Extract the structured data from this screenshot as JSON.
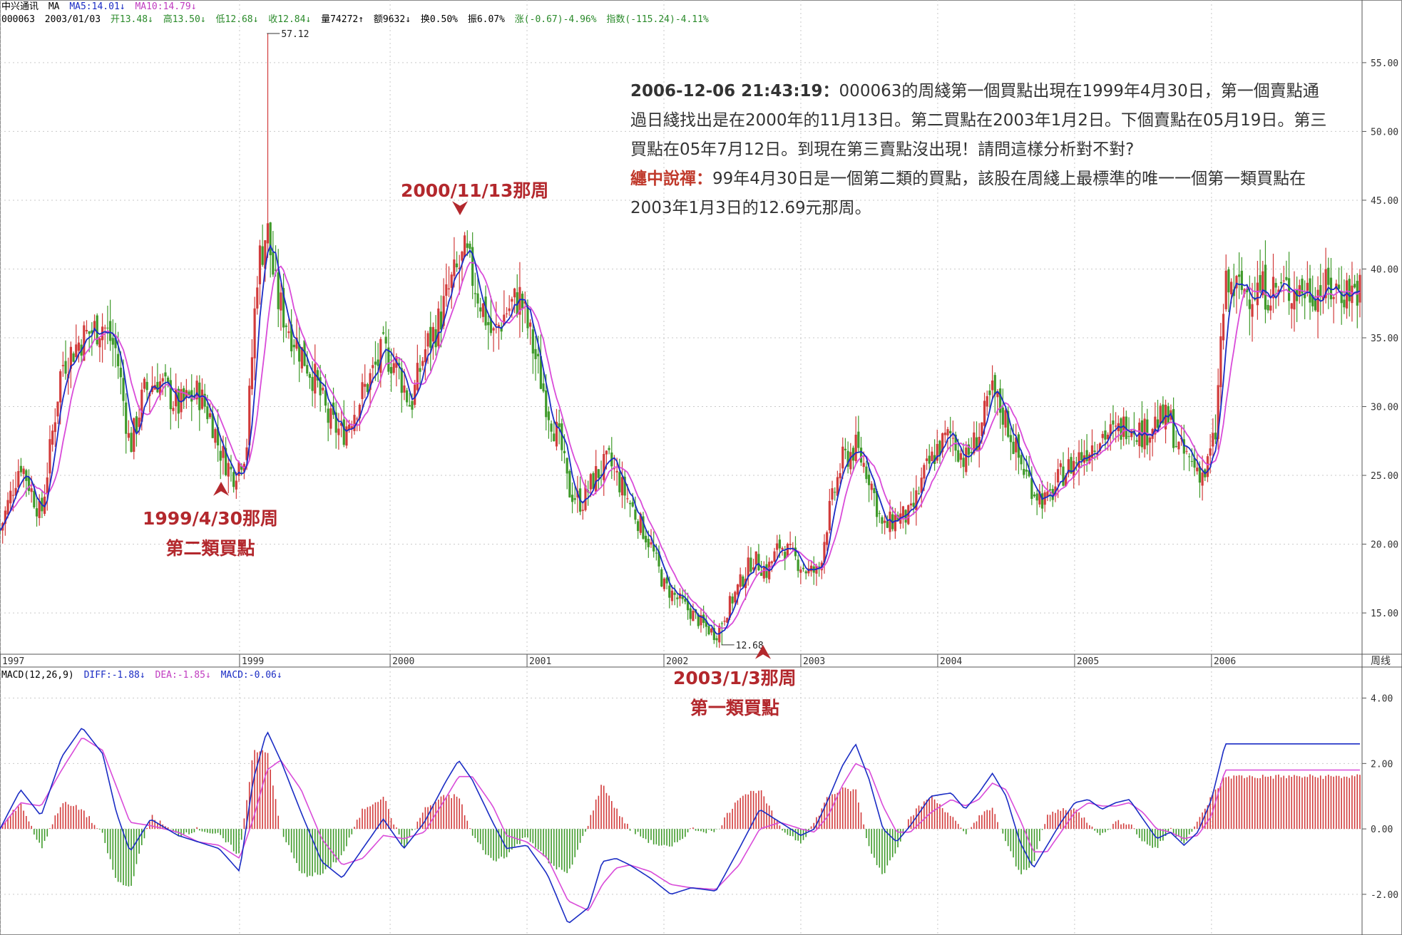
{
  "header": {
    "line1": {
      "stock_name": "中兴通讯",
      "ma_label": "MA",
      "ma5": "MA5:14.01↓",
      "ma10": "MA10:14.79↓"
    },
    "line2": {
      "code": "000063",
      "date": "2003/01/03",
      "open": "开13.48↓",
      "high": "高13.50↓",
      "low": "低12.68↓",
      "close": "收12.84↓",
      "volume": "量74272↑",
      "amount": "额9632↓",
      "turnover": "换0.50%",
      "amplitude": "振6.07%",
      "change": "涨(-0.67)-4.96%",
      "index": "指数(-115.24)-4.11%"
    },
    "macd": {
      "title": "MACD(12,26,9)",
      "diff": "DIFF:-1.88↓",
      "dea": "DEA:-1.85↓",
      "macd": "MACD:-0.06↓"
    }
  },
  "comment": {
    "q_label": "2006-12-06 21:43:19：",
    "q_text": "000063的周綫第一個買點出現在1999年4月30日，第一個賣點通過日綫找出是在2000年的11月13日。第二買點在2003年1月2日。下個賣點在05月19日。第三買點在05年7月12日。到現在第三賣點沒出現！請問這樣分析對不對?",
    "a_label": "纏中說禪：",
    "a_text": "99年4月30日是一個第二類的買點，該股在周綫上最標準的唯一一個第一類買點在2003年1月3日的12.69元那周。"
  },
  "annotations": {
    "a1999_line1": "1999/4/30那周",
    "a1999_line2": "第二類買點",
    "a2000": "2000/11/13那周",
    "a2003_line1": "2003/1/3那周",
    "a2003_line2": "第一類買點"
  },
  "colors": {
    "up": "#d23b3b",
    "down": "#3f9a2a",
    "ma5": "#1a2cc4",
    "ma10": "#d94bd9",
    "grid": "#c9c9c9",
    "annotation": "#b3282d",
    "hdr_blue": "#1a2cc4",
    "hdr_magenta": "#c03cc0",
    "hdr_green": "#2a8a2a"
  },
  "chart_data": [
    {
      "type": "candlestick-weekly",
      "title": "中兴通讯 000063 周线",
      "x_tick_labels": [
        "1997",
        "1999",
        "2000",
        "2001",
        "2002",
        "2003",
        "2004",
        "2005",
        "2006"
      ],
      "x_tick_years": [
        1997.0,
        1998.75,
        1999.85,
        2000.85,
        2001.85,
        2002.85,
        2003.85,
        2004.85,
        2005.85
      ],
      "x_range": [
        1997.0,
        2006.95
      ],
      "period_label": "周线",
      "y_ticks": [
        15,
        20,
        25,
        30,
        35,
        40,
        45,
        50,
        55
      ],
      "y_tick_labels": [
        "15.00",
        "20.00",
        "25.00",
        "30.00",
        "35.00",
        "40.00",
        "45.00",
        "50.00",
        "55.00"
      ],
      "ylim": [
        12,
        58
      ],
      "price_path": [
        [
          1997.0,
          21
        ],
        [
          1997.15,
          26
        ],
        [
          1997.3,
          22
        ],
        [
          1997.45,
          33
        ],
        [
          1997.6,
          35
        ],
        [
          1997.75,
          36
        ],
        [
          1997.85,
          34
        ],
        [
          1997.95,
          27
        ],
        [
          1998.05,
          31
        ],
        [
          1998.15,
          32
        ],
        [
          1998.3,
          30
        ],
        [
          1998.45,
          31
        ],
        [
          1998.55,
          29
        ],
        [
          1998.6,
          27
        ],
        [
          1998.7,
          25
        ],
        [
          1998.8,
          27
        ],
        [
          1998.88,
          40
        ],
        [
          1998.95,
          43
        ],
        [
          1999.02,
          38
        ],
        [
          1999.1,
          36
        ],
        [
          1999.2,
          34
        ],
        [
          1999.3,
          32
        ],
        [
          1999.4,
          29
        ],
        [
          1999.5,
          28
        ],
        [
          1999.6,
          30
        ],
        [
          1999.7,
          32
        ],
        [
          1999.8,
          34
        ],
        [
          1999.9,
          33
        ],
        [
          2000.0,
          30
        ],
        [
          2000.1,
          34
        ],
        [
          2000.2,
          36
        ],
        [
          2000.3,
          39
        ],
        [
          2000.4,
          41
        ],
        [
          2000.5,
          38
        ],
        [
          2000.6,
          35
        ],
        [
          2000.7,
          37
        ],
        [
          2000.8,
          38
        ],
        [
          2000.9,
          34
        ],
        [
          2001.0,
          30
        ],
        [
          2001.1,
          27
        ],
        [
          2001.15,
          24
        ],
        [
          2001.25,
          23
        ],
        [
          2001.35,
          25
        ],
        [
          2001.45,
          26
        ],
        [
          2001.55,
          24
        ],
        [
          2001.65,
          22
        ],
        [
          2001.75,
          20
        ],
        [
          2001.85,
          17
        ],
        [
          2001.95,
          16
        ],
        [
          2002.05,
          15
        ],
        [
          2002.15,
          14
        ],
        [
          2002.23,
          13.4
        ],
        [
          2002.3,
          15
        ],
        [
          2002.4,
          17
        ],
        [
          2002.5,
          19
        ],
        [
          2002.6,
          18
        ],
        [
          2002.7,
          20
        ],
        [
          2002.8,
          19
        ],
        [
          2002.9,
          18
        ],
        [
          2002.98,
          18
        ],
        [
          2003.05,
          22
        ],
        [
          2003.15,
          26
        ],
        [
          2003.25,
          27
        ],
        [
          2003.35,
          25
        ],
        [
          2003.45,
          21
        ],
        [
          2003.55,
          22
        ],
        [
          2003.65,
          22
        ],
        [
          2003.75,
          25
        ],
        [
          2003.85,
          27
        ],
        [
          2003.95,
          28
        ],
        [
          2004.05,
          26
        ],
        [
          2004.15,
          28
        ],
        [
          2004.25,
          31
        ],
        [
          2004.35,
          29
        ],
        [
          2004.45,
          26
        ],
        [
          2004.55,
          24
        ],
        [
          2004.65,
          23
        ],
        [
          2004.75,
          25
        ],
        [
          2004.85,
          26
        ],
        [
          2004.95,
          27
        ],
        [
          2005.05,
          28
        ],
        [
          2005.15,
          28
        ],
        [
          2005.25,
          29
        ],
        [
          2005.35,
          28
        ],
        [
          2005.45,
          29
        ],
        [
          2005.55,
          29
        ],
        [
          2005.6,
          27
        ],
        [
          2005.7,
          26
        ],
        [
          2005.8,
          25
        ],
        [
          2005.88,
          28
        ],
        [
          2005.92,
          35
        ],
        [
          2005.95,
          38.5
        ]
      ],
      "spikes": [
        {
          "label": "57.12",
          "year": 1998.95,
          "value": 57.12
        },
        {
          "label": "12.68",
          "year": 2002.27,
          "value": 12.68
        }
      ]
    },
    {
      "type": "macd",
      "title": "MACD(12,26,9)",
      "y_ticks": [
        -2,
        0,
        2,
        4
      ],
      "y_tick_labels": [
        "-2.00",
        "0.00",
        "2.00",
        "4.00"
      ],
      "ylim": [
        -3.2,
        4.6
      ],
      "diff_path": [
        [
          1997.0,
          0
        ],
        [
          1997.15,
          1.2
        ],
        [
          1997.3,
          0.4
        ],
        [
          1997.45,
          2.2
        ],
        [
          1997.6,
          3.1
        ],
        [
          1997.75,
          2.3
        ],
        [
          1997.85,
          0.5
        ],
        [
          1997.95,
          -0.7
        ],
        [
          1998.1,
          0.3
        ],
        [
          1998.3,
          -0.2
        ],
        [
          1998.45,
          -0.4
        ],
        [
          1998.6,
          -0.6
        ],
        [
          1998.75,
          -1.3
        ],
        [
          1998.85,
          1.5
        ],
        [
          1998.95,
          3.0
        ],
        [
          1999.05,
          2.1
        ],
        [
          1999.2,
          0.5
        ],
        [
          1999.35,
          -1.0
        ],
        [
          1999.5,
          -1.5
        ],
        [
          1999.65,
          -0.6
        ],
        [
          1999.8,
          0.3
        ],
        [
          1999.95,
          -0.6
        ],
        [
          2000.1,
          0.2
        ],
        [
          2000.25,
          1.4
        ],
        [
          2000.35,
          2.1
        ],
        [
          2000.45,
          1.5
        ],
        [
          2000.6,
          0.2
        ],
        [
          2000.7,
          -0.6
        ],
        [
          2000.85,
          -0.5
        ],
        [
          2001.0,
          -1.4
        ],
        [
          2001.15,
          -2.9
        ],
        [
          2001.3,
          -2.4
        ],
        [
          2001.4,
          -1.0
        ],
        [
          2001.5,
          -0.9
        ],
        [
          2001.6,
          -1.1
        ],
        [
          2001.75,
          -1.5
        ],
        [
          2001.9,
          -2.0
        ],
        [
          2002.05,
          -1.8
        ],
        [
          2002.23,
          -1.9
        ],
        [
          2002.4,
          -0.6
        ],
        [
          2002.55,
          0.6
        ],
        [
          2002.7,
          0.2
        ],
        [
          2002.85,
          -0.2
        ],
        [
          2002.95,
          0
        ],
        [
          2003.05,
          0.9
        ],
        [
          2003.15,
          1.9
        ],
        [
          2003.25,
          2.6
        ],
        [
          2003.35,
          1.5
        ],
        [
          2003.45,
          0
        ],
        [
          2003.55,
          -0.4
        ],
        [
          2003.65,
          0.1
        ],
        [
          2003.8,
          1.0
        ],
        [
          2003.95,
          1.1
        ],
        [
          2004.05,
          0.6
        ],
        [
          2004.15,
          1.1
        ],
        [
          2004.25,
          1.7
        ],
        [
          2004.35,
          1.0
        ],
        [
          2004.45,
          -0.4
        ],
        [
          2004.55,
          -1.2
        ],
        [
          2004.65,
          -0.5
        ],
        [
          2004.75,
          0.2
        ],
        [
          2004.85,
          0.8
        ],
        [
          2004.95,
          0.9
        ],
        [
          2005.05,
          0.6
        ],
        [
          2005.15,
          0.8
        ],
        [
          2005.25,
          0.9
        ],
        [
          2005.35,
          0.3
        ],
        [
          2005.45,
          -0.3
        ],
        [
          2005.55,
          -0.1
        ],
        [
          2005.65,
          -0.5
        ],
        [
          2005.75,
          -0.1
        ],
        [
          2005.85,
          0.9
        ],
        [
          2005.95,
          2.6
        ]
      ],
      "dea_path": [
        [
          1997.0,
          0
        ],
        [
          1997.15,
          0.8
        ],
        [
          1997.3,
          0.7
        ],
        [
          1997.45,
          1.8
        ],
        [
          1997.6,
          2.8
        ],
        [
          1997.75,
          2.4
        ],
        [
          1997.85,
          1.3
        ],
        [
          1997.95,
          0.2
        ],
        [
          1998.1,
          0.1
        ],
        [
          1998.3,
          -0.1
        ],
        [
          1998.45,
          -0.4
        ],
        [
          1998.6,
          -0.5
        ],
        [
          1998.75,
          -0.9
        ],
        [
          1998.85,
          0.3
        ],
        [
          1998.95,
          1.8
        ],
        [
          1999.05,
          2.1
        ],
        [
          1999.2,
          1.2
        ],
        [
          1999.35,
          -0.3
        ],
        [
          1999.5,
          -1.1
        ],
        [
          1999.65,
          -0.9
        ],
        [
          1999.8,
          -0.2
        ],
        [
          1999.95,
          -0.3
        ],
        [
          2000.1,
          -0.1
        ],
        [
          2000.25,
          0.9
        ],
        [
          2000.35,
          1.6
        ],
        [
          2000.45,
          1.6
        ],
        [
          2000.6,
          0.7
        ],
        [
          2000.7,
          -0.2
        ],
        [
          2000.85,
          -0.4
        ],
        [
          2001.0,
          -0.9
        ],
        [
          2001.15,
          -2.2
        ],
        [
          2001.3,
          -2.5
        ],
        [
          2001.4,
          -1.7
        ],
        [
          2001.5,
          -1.2
        ],
        [
          2001.6,
          -1.1
        ],
        [
          2001.75,
          -1.3
        ],
        [
          2001.9,
          -1.7
        ],
        [
          2002.05,
          -1.8
        ],
        [
          2002.23,
          -1.85
        ],
        [
          2002.4,
          -1.1
        ],
        [
          2002.55,
          0
        ],
        [
          2002.7,
          0.2
        ],
        [
          2002.85,
          0
        ],
        [
          2002.95,
          -0.1
        ],
        [
          2003.05,
          0.4
        ],
        [
          2003.15,
          1.3
        ],
        [
          2003.25,
          2.0
        ],
        [
          2003.35,
          1.8
        ],
        [
          2003.45,
          0.7
        ],
        [
          2003.55,
          -0.1
        ],
        [
          2003.65,
          -0.1
        ],
        [
          2003.8,
          0.5
        ],
        [
          2003.95,
          0.9
        ],
        [
          2004.05,
          0.7
        ],
        [
          2004.15,
          0.9
        ],
        [
          2004.25,
          1.4
        ],
        [
          2004.35,
          1.2
        ],
        [
          2004.45,
          0.3
        ],
        [
          2004.55,
          -0.7
        ],
        [
          2004.65,
          -0.7
        ],
        [
          2004.75,
          -0.1
        ],
        [
          2004.85,
          0.5
        ],
        [
          2004.95,
          0.8
        ],
        [
          2005.05,
          0.7
        ],
        [
          2005.15,
          0.7
        ],
        [
          2005.25,
          0.8
        ],
        [
          2005.35,
          0.5
        ],
        [
          2005.45,
          0
        ],
        [
          2005.55,
          -0.1
        ],
        [
          2005.65,
          -0.3
        ],
        [
          2005.75,
          -0.2
        ],
        [
          2005.85,
          0.4
        ],
        [
          2005.95,
          1.8
        ]
      ]
    }
  ]
}
